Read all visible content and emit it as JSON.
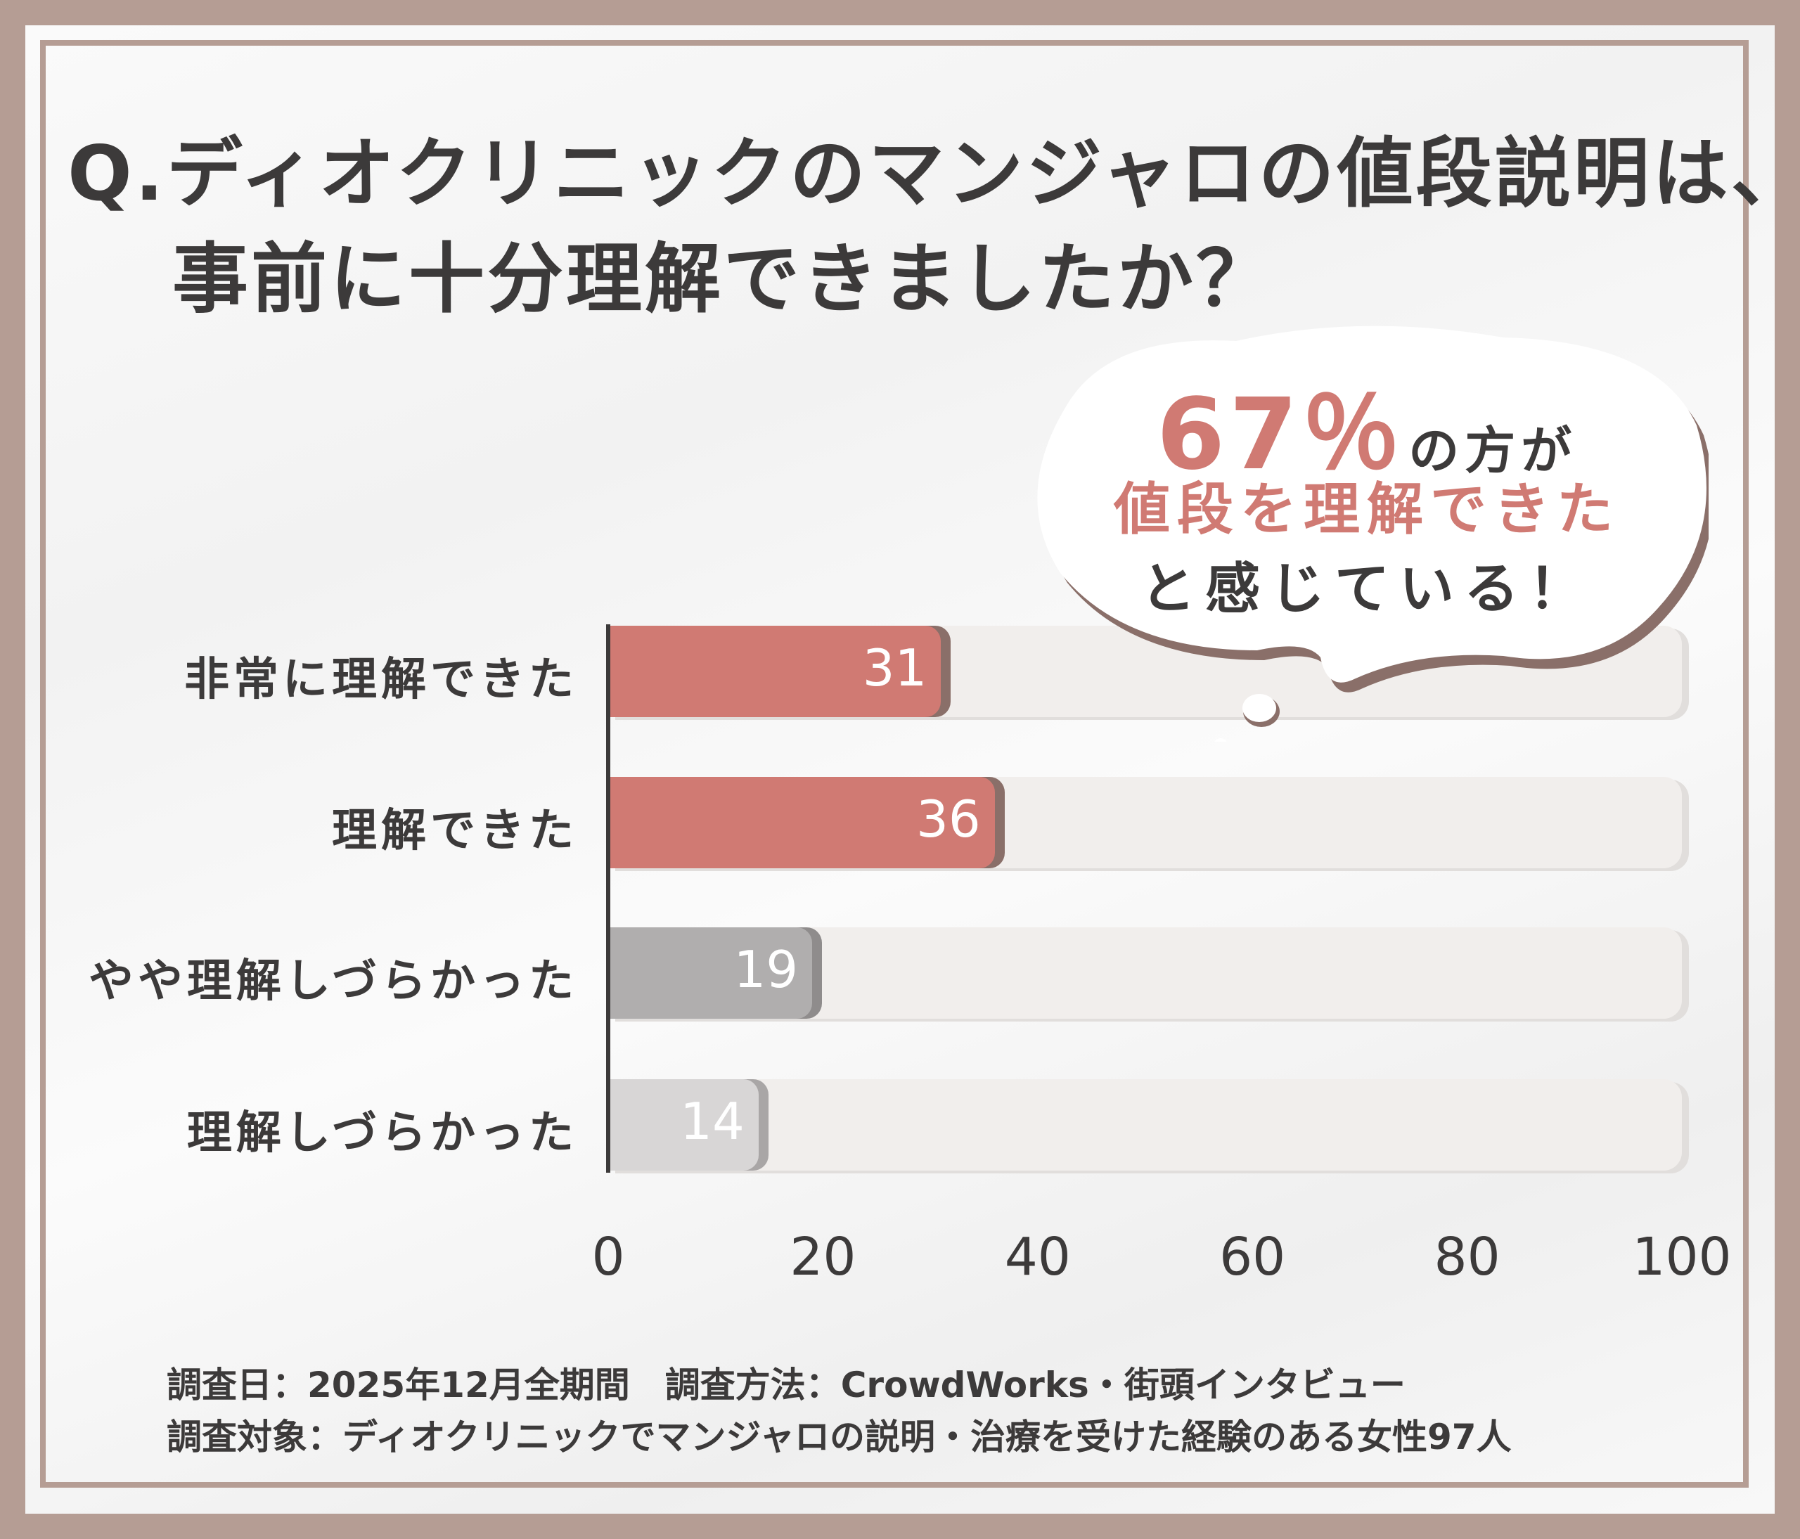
{
  "title": {
    "line1": "Q.ディオクリニックのマンジャロの値段説明は、",
    "line2": "事前に十分理解できましたか？"
  },
  "callout": {
    "percent": "67％",
    "suffix": "の方が",
    "line2": "値段を理解できた",
    "line3": "と感じている！"
  },
  "chart_data": {
    "type": "bar",
    "orientation": "horizontal",
    "categories": [
      "非常に理解できた",
      "理解できた",
      "やや理解しづらかった",
      "理解しづらかった"
    ],
    "values": [
      31,
      36,
      19,
      14
    ],
    "xlim": [
      0,
      100
    ],
    "xticks": [
      "0",
      "20",
      "40",
      "60",
      "80",
      "100"
    ],
    "colors": [
      "#d07a73",
      "#d07a73",
      "#b0aeae",
      "#d8d6d6"
    ],
    "shadow_colors": [
      "#8a6f69",
      "#8a6f69",
      "#8f8c8c",
      "#a9a6a6"
    ]
  },
  "footer": {
    "line1": "調査日：2025年12月全期間　調査方法：CrowdWorks・街頭インタビュー",
    "line2": "調査対象：ディオクリニックでマンジャロの説明・治療を受けた経験のある女性97人"
  }
}
